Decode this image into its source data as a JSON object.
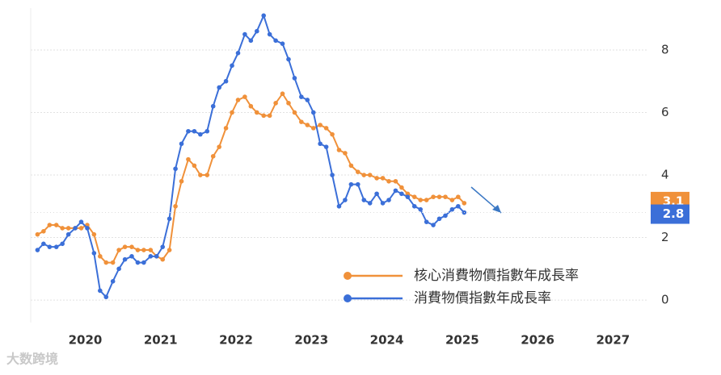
{
  "chart_data": {
    "type": "line",
    "x": [
      2019.42,
      2019.5,
      2019.58,
      2019.67,
      2019.75,
      2019.83,
      2019.92,
      2020,
      2020.08,
      2020.17,
      2020.25,
      2020.33,
      2020.42,
      2020.5,
      2020.58,
      2020.67,
      2020.75,
      2020.83,
      2020.92,
      2021,
      2021.08,
      2021.17,
      2021.25,
      2021.33,
      2021.42,
      2021.5,
      2021.58,
      2021.67,
      2021.75,
      2021.83,
      2021.92,
      2022,
      2022.08,
      2022.17,
      2022.25,
      2022.33,
      2022.42,
      2022.5,
      2022.58,
      2022.67,
      2022.75,
      2022.83,
      2022.92,
      2023,
      2023.08,
      2023.17,
      2023.25,
      2023.33,
      2023.42,
      2023.5,
      2023.58,
      2023.67,
      2023.75,
      2023.83,
      2023.92,
      2024,
      2024.08,
      2024.17,
      2024.25,
      2024.33,
      2024.42,
      2024.5,
      2024.58,
      2024.67,
      2024.75,
      2024.83,
      2024.92,
      2025,
      2025.08
    ],
    "series": [
      {
        "name": "核心消費物價指數年成長率",
        "color": "#f0913a",
        "values": [
          2.1,
          2.2,
          2.4,
          2.4,
          2.3,
          2.3,
          2.3,
          2.3,
          2.4,
          2.1,
          1.4,
          1.2,
          1.2,
          1.6,
          1.7,
          1.7,
          1.6,
          1.6,
          1.6,
          1.4,
          1.3,
          1.6,
          3.0,
          3.8,
          4.5,
          4.3,
          4.0,
          4.0,
          4.6,
          4.9,
          5.5,
          6.0,
          6.4,
          6.5,
          6.2,
          6.0,
          5.9,
          5.9,
          6.3,
          6.6,
          6.3,
          6.0,
          5.7,
          5.6,
          5.5,
          5.6,
          5.5,
          5.3,
          4.8,
          4.7,
          4.3,
          4.1,
          4.0,
          4.0,
          3.9,
          3.9,
          3.8,
          3.8,
          3.6,
          3.4,
          3.3,
          3.2,
          3.2,
          3.3,
          3.3,
          3.3,
          3.2,
          3.3,
          3.1
        ]
      },
      {
        "name": "消費物價指數年成長率",
        "color": "#3b6fd8",
        "values": [
          1.6,
          1.8,
          1.7,
          1.7,
          1.8,
          2.1,
          2.3,
          2.5,
          2.3,
          1.5,
          0.3,
          0.1,
          0.6,
          1.0,
          1.3,
          1.4,
          1.2,
          1.2,
          1.4,
          1.4,
          1.7,
          2.6,
          4.2,
          5.0,
          5.4,
          5.4,
          5.3,
          5.4,
          6.2,
          6.8,
          7.0,
          7.5,
          7.9,
          8.5,
          8.3,
          8.6,
          9.1,
          8.5,
          8.3,
          8.2,
          7.7,
          7.1,
          6.5,
          6.4,
          6.0,
          5.0,
          4.9,
          4.0,
          3.0,
          3.2,
          3.7,
          3.7,
          3.2,
          3.1,
          3.4,
          3.1,
          3.2,
          3.5,
          3.4,
          3.3,
          3.0,
          2.9,
          2.5,
          2.4,
          2.6,
          2.7,
          2.9,
          3.0,
          2.8
        ]
      }
    ],
    "xlim": [
      2019.33,
      2027.5
    ],
    "xticks": [
      2020,
      2021,
      2022,
      2023,
      2024,
      2025,
      2026,
      2027
    ],
    "ylim": [
      -0.72,
      9.34
    ],
    "yticks": [
      0,
      2,
      4,
      6,
      8
    ],
    "grid": true,
    "legend": "lower-right",
    "watermark": "大数跨境"
  }
}
